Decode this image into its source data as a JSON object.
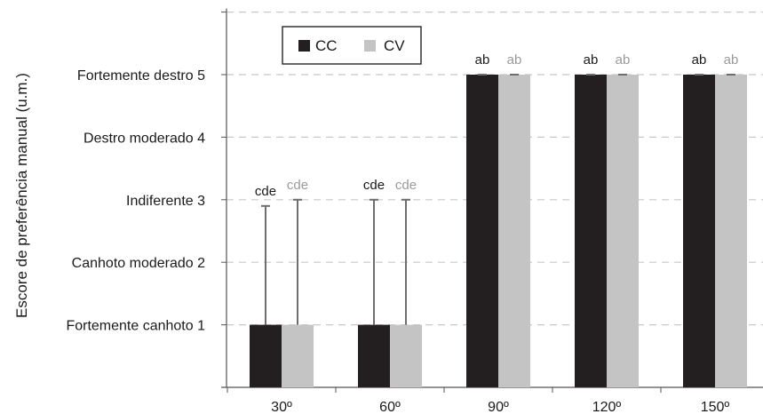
{
  "chart_data": {
    "type": "bar",
    "ylabel": "Escore de preferência manual (u.m.)",
    "xlabel": "",
    "categories": [
      "30º",
      "60º",
      "90º",
      "120º",
      "150º"
    ],
    "y_ticks": [
      {
        "value": 1,
        "label": "Fortemente canhoto 1"
      },
      {
        "value": 2,
        "label": "Canhoto moderado 2"
      },
      {
        "value": 3,
        "label": "Indiferente 3"
      },
      {
        "value": 4,
        "label": "Destro moderado 4"
      },
      {
        "value": 5,
        "label": "Fortemente destro 5"
      }
    ],
    "ylim": [
      0,
      6
    ],
    "grid": "horizontal-dashed",
    "legend_position": "top-left",
    "series": [
      {
        "name": "CC",
        "color": "#231f20",
        "sig_color": "#1a1a1a",
        "values": [
          1,
          1,
          5,
          5,
          5
        ],
        "error_upper": [
          2.9,
          3,
          5,
          5,
          5
        ],
        "significance": [
          "cde",
          "cde",
          "ab",
          "ab",
          "ab"
        ]
      },
      {
        "name": "CV",
        "color": "#c4c4c4",
        "sig_color": "#9a9a9a",
        "values": [
          1,
          1,
          5,
          5,
          5
        ],
        "error_upper": [
          3,
          3,
          5,
          5,
          5
        ],
        "significance": [
          "cde",
          "cde",
          "ab",
          "ab",
          "ab"
        ]
      }
    ]
  }
}
